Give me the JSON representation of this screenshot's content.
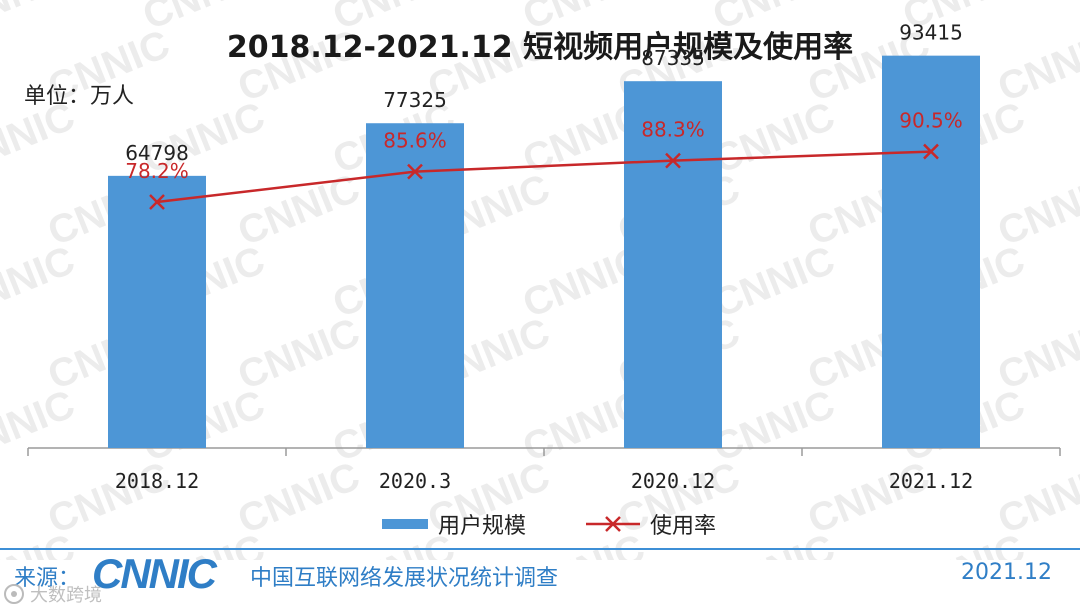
{
  "chart_data": {
    "type": "bar",
    "title": "2018.12-2021.12 短视频用户规模及使用率",
    "unit_label": "单位：万人",
    "categories": [
      "2018.12",
      "2020.3",
      "2020.12",
      "2021.12"
    ],
    "series": [
      {
        "name": "用户规模",
        "type": "bar",
        "color": "#4d96d6",
        "values": [
          64798,
          77325,
          87335,
          93415
        ],
        "labels": [
          "64798",
          "77325",
          "87335",
          "93415"
        ],
        "ylim": [
          0,
          100000
        ]
      },
      {
        "name": "使用率",
        "type": "line",
        "color": "#c8282a",
        "marker": "x",
        "values": [
          78.2,
          85.6,
          88.3,
          90.5
        ],
        "labels": [
          "78.2%",
          "85.6%",
          "88.3%",
          "90.5%"
        ],
        "ylim": [
          0,
          100
        ]
      }
    ],
    "legend": "bottom-center",
    "grid": false
  },
  "footer": {
    "source_label": "来源：",
    "logo_text": "CNNIC",
    "source_title": "中国互联网络发展状况统计调查",
    "date": "2021.12",
    "badge_text": "大数跨境"
  },
  "watermark": {
    "text": "CNNIC"
  }
}
